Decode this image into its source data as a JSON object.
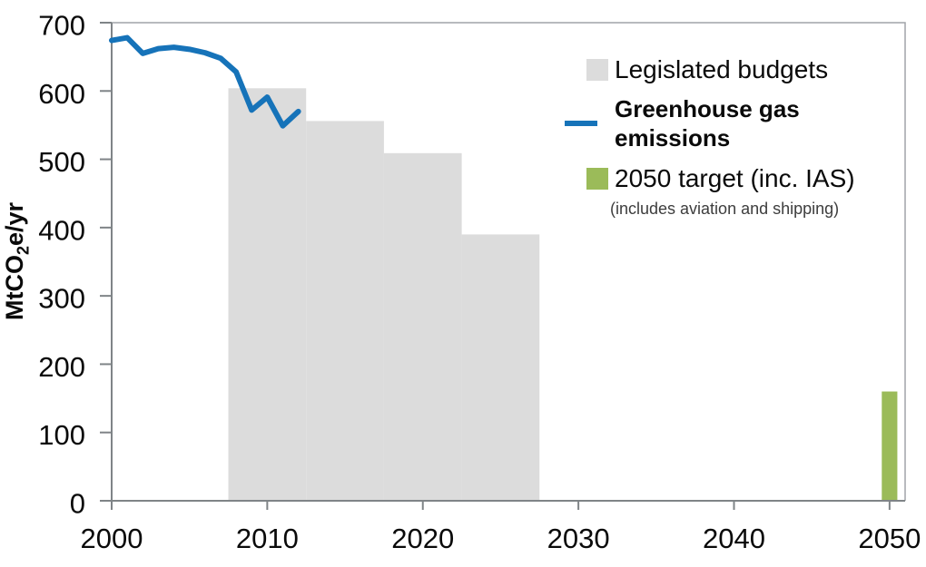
{
  "chart_data": {
    "type": "combo",
    "title": "",
    "ylabel": "MtCO2e/yr",
    "ylabel_parts": {
      "pre": "MtCO",
      "sub": "2",
      "post": "e/yr"
    },
    "xlabel": "",
    "ylim": [
      0,
      700
    ],
    "yticks": [
      0,
      100,
      200,
      300,
      400,
      500,
      600,
      700
    ],
    "xlim": [
      2000,
      2051
    ],
    "xticks": [
      2000,
      2010,
      2020,
      2030,
      2040,
      2050
    ],
    "grid": false,
    "legend_position": "top-right",
    "axis_color": "#7f8487",
    "frame_color": "#a0a4a8",
    "series": [
      {
        "name": "Legislated budgets",
        "type": "step_area",
        "color": "#dcdcdc",
        "budgets": [
          {
            "from_year": 2008,
            "to_year": 2012,
            "annual_value": 604
          },
          {
            "from_year": 2013,
            "to_year": 2017,
            "annual_value": 556
          },
          {
            "from_year": 2018,
            "to_year": 2022,
            "annual_value": 509
          },
          {
            "from_year": 2023,
            "to_year": 2027,
            "annual_value": 390
          }
        ]
      },
      {
        "name": "Greenhouse gas emissions",
        "type": "line",
        "color": "#1673b9",
        "line_width": 6,
        "x": [
          2000,
          2001,
          2002,
          2003,
          2004,
          2005,
          2006,
          2007,
          2008,
          2009,
          2010,
          2011,
          2012
        ],
        "values": [
          674,
          678,
          655,
          662,
          664,
          661,
          656,
          648,
          628,
          572,
          591,
          549,
          570
        ]
      },
      {
        "name": "2050 target (inc. IAS)",
        "type": "bar",
        "color": "#9bbb59",
        "bar_width_years": 1,
        "x": [
          2050
        ],
        "values": [
          160
        ]
      }
    ]
  },
  "legend": {
    "items": [
      {
        "label": "Legislated budgets",
        "swatch": "square",
        "color": "#dcdcdc"
      },
      {
        "label": "Greenhouse gas emissions",
        "swatch": "line",
        "color": "#1673b9"
      },
      {
        "label": "2050 target (inc. IAS)",
        "swatch": "square",
        "color": "#9bbb59"
      }
    ],
    "note": "(includes aviation and shipping)"
  }
}
